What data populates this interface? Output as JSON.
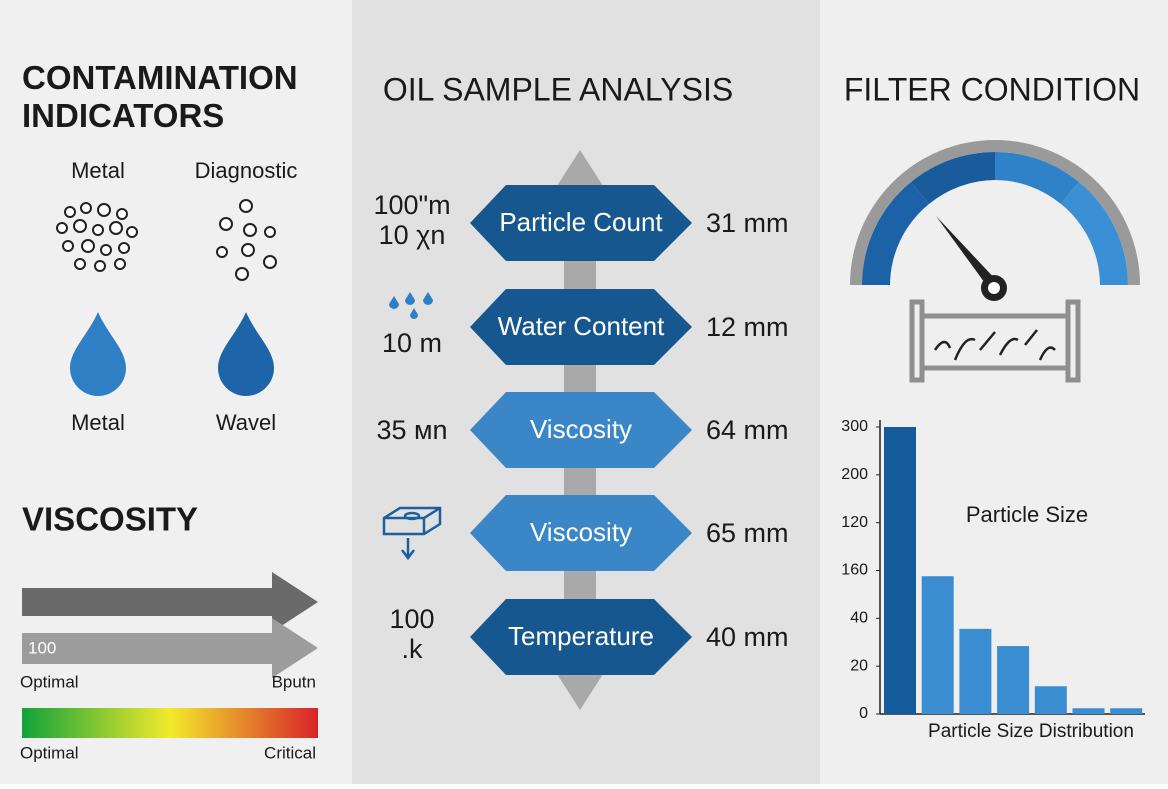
{
  "left": {
    "title": "CONTAMINATION INDICATORS",
    "indicators": [
      {
        "label": "Metal"
      },
      {
        "label": "Diagnostic"
      },
      {
        "label": "Metal"
      },
      {
        "label": "Wavel"
      }
    ],
    "viscosity": {
      "title": "VISCOSITY",
      "bar_label": "100",
      "arrow_left": "Optimal",
      "arrow_right": "Bputn",
      "scale_left": "Optimal",
      "scale_right": "Critical"
    }
  },
  "middle": {
    "title": "OIL SAMPLE ANALYSIS",
    "rows": [
      {
        "left": [
          "100\"m",
          "10 χn"
        ],
        "label": "Particle Count",
        "right": "31 mm",
        "color": "#17578f"
      },
      {
        "left": [
          "10 m"
        ],
        "label": "Water Content",
        "right": "12 mm",
        "color": "#17578f"
      },
      {
        "left": [
          "35 мn"
        ],
        "label": "Viscosity",
        "right": "64 mm",
        "color": "#3a86c6"
      },
      {
        "label": "Viscosity",
        "right": "65 mm",
        "color": "#3a86c6"
      },
      {
        "left": [
          "100",
          ".k"
        ],
        "label": "Temperature",
        "right": "40 mm",
        "color": "#17578f"
      }
    ]
  },
  "right": {
    "title": "FILTER CONDITION",
    "chart_data": {
      "type": "bar",
      "title": "Particle Size",
      "x_label": "Particle Size Distribution",
      "values": [
        300,
        144,
        89,
        71,
        29,
        6,
        6
      ],
      "colors": [
        "#145b9c",
        "#3a8dd0",
        "#3a8dd0",
        "#3a8dd0",
        "#3a8dd0",
        "#3a8dd0",
        "#3a8dd0"
      ],
      "ylim": [
        0,
        300
      ],
      "yticks": [
        0,
        {
          "value": 50,
          "label": "20"
        },
        {
          "value": 100,
          "label": "40"
        },
        {
          "value": 150,
          "label": "160"
        },
        {
          "value": 200,
          "label": "120"
        },
        {
          "value": 250,
          "label": "200"
        },
        300
      ]
    }
  }
}
